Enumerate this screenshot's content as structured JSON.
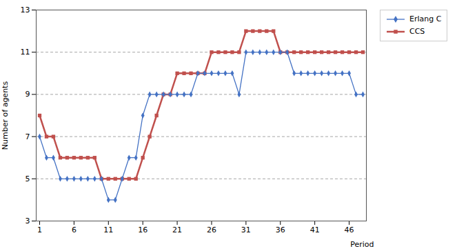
{
  "chart_data": {
    "type": "line",
    "ylabel": "Number of agents",
    "xlabel": "Period",
    "x": [
      1,
      2,
      3,
      4,
      5,
      6,
      7,
      8,
      9,
      10,
      11,
      12,
      13,
      14,
      15,
      16,
      17,
      18,
      19,
      20,
      21,
      22,
      23,
      24,
      25,
      26,
      27,
      28,
      29,
      30,
      31,
      32,
      33,
      34,
      35,
      36,
      37,
      38,
      39,
      40,
      41,
      42,
      43,
      44,
      45,
      46,
      47,
      48
    ],
    "series": [
      {
        "name": "Erlang C",
        "color": "#4472C4",
        "marker": "diamond",
        "values": [
          7,
          6,
          6,
          5,
          5,
          5,
          5,
          5,
          5,
          5,
          4,
          4,
          5,
          6,
          6,
          8,
          9,
          9,
          9,
          9,
          9,
          9,
          9,
          10,
          10,
          10,
          10,
          10,
          10,
          9,
          11,
          11,
          11,
          11,
          11,
          11,
          11,
          10,
          10,
          10,
          10,
          10,
          10,
          10,
          10,
          10,
          9,
          9
        ]
      },
      {
        "name": "CCS",
        "color": "#C0504D",
        "marker": "square",
        "values": [
          8,
          7,
          7,
          6,
          6,
          6,
          6,
          6,
          6,
          5,
          5,
          5,
          5,
          5,
          5,
          6,
          7,
          8,
          9,
          9,
          10,
          10,
          10,
          10,
          10,
          11,
          11,
          11,
          11,
          11,
          12,
          12,
          12,
          12,
          12,
          11,
          11,
          11,
          11,
          11,
          11,
          11,
          11,
          11,
          11,
          11,
          11,
          11
        ]
      }
    ],
    "xlim": [
      0.5,
      48.5
    ],
    "ylim": [
      3,
      13
    ],
    "xticks": [
      1,
      6,
      11,
      16,
      21,
      26,
      31,
      36,
      41,
      46
    ],
    "yticks": [
      3,
      5,
      7,
      9,
      11,
      13
    ],
    "grid": "y",
    "legend": "right"
  }
}
